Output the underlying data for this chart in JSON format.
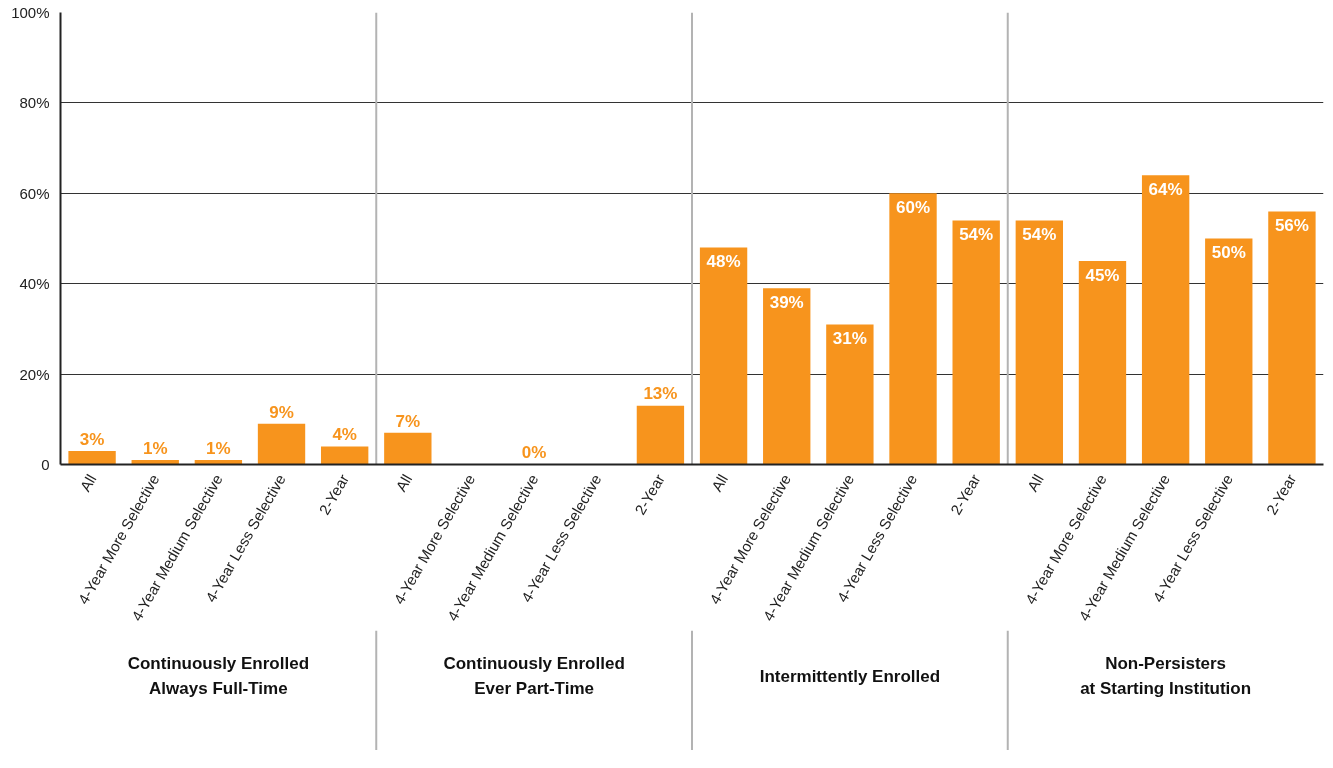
{
  "chart_data": {
    "type": "bar",
    "categories": [
      "All",
      "4-Year More Selective",
      "4-Year Medium Selective",
      "4-Year Less Selective",
      "2-Year",
      "All",
      "4-Year More Selective",
      "4-Year Medium Selective",
      "4-Year Less Selective",
      "2-Year",
      "All",
      "4-Year More Selective",
      "4-Year Medium Selective",
      "4-Year Less Selective",
      "2-Year",
      "All",
      "4-Year More Selective",
      "4-Year Medium Selective",
      "4-Year Less Selective",
      "2-Year"
    ],
    "values": [
      3,
      1,
      1,
      9,
      4,
      7,
      null,
      0,
      null,
      13,
      48,
      39,
      31,
      60,
      54,
      54,
      45,
      64,
      50,
      56
    ],
    "value_labels": [
      "3%",
      "1%",
      "1%",
      "9%",
      "4%",
      "7%",
      null,
      "0%",
      null,
      "13%",
      "48%",
      "39%",
      "31%",
      "60%",
      "54%",
      "54%",
      "45%",
      "64%",
      "50%",
      "56%"
    ],
    "color": "#f7941d",
    "ylim": [
      0,
      100
    ],
    "yticks": [
      {
        "value": 0,
        "label": "0"
      },
      {
        "value": 20,
        "label": "20%"
      },
      {
        "value": 40,
        "label": "40%"
      },
      {
        "value": 60,
        "label": "60%"
      },
      {
        "value": 80,
        "label": "80%"
      },
      {
        "value": 100,
        "label": "100%"
      }
    ],
    "grid": "y",
    "annotations": [
      "Continuously Enrolled\nAlways Full-Time",
      "Continuously Enrolled\nEver Part-Time",
      "Intermittently Enrolled",
      "Non-Persisters\nat Starting Institution"
    ]
  }
}
